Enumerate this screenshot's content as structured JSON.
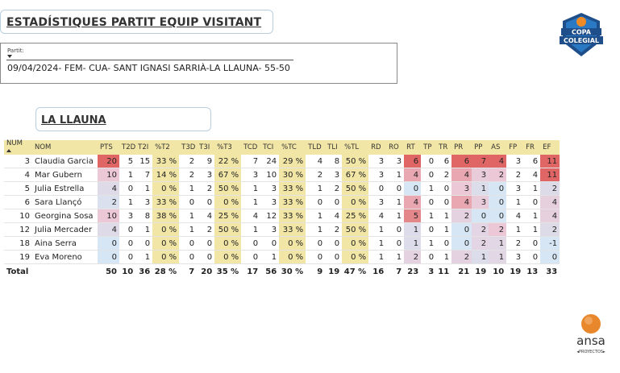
{
  "page_title": "ESTADÍSTIQUES PARTIT EQUIP VISITANT",
  "filter": {
    "label": "Partit:",
    "value": "09/04/2024- FEM- CUA- SANT IGNASI SARRIÀ-LA LLAUNA- 55-50"
  },
  "team": "LA LLAUNA",
  "logos": {
    "copa_line1": "COPA",
    "copa_line2": "COLEGIAL",
    "ansa_name": "ansa",
    "ansa_sub": "◂PROYECTOS▸"
  },
  "colors": {
    "header_bg": "#f1e6a6",
    "heat_high": "#e06666",
    "heat_low": "#dbe8f4",
    "accent": "#e8872b"
  },
  "table": {
    "columns": [
      "NUM",
      "NOM",
      "PTS",
      "T2D",
      "T2I",
      "%T2",
      "T3D",
      "T3I",
      "%T3",
      "TCD",
      "TCI",
      "%TC",
      "TLD",
      "TLI",
      "%TL",
      "RD",
      "RO",
      "RT",
      "TP",
      "TR",
      "PR",
      "PP",
      "AS",
      "FP",
      "FR",
      "EF"
    ],
    "rows": [
      [
        "3",
        "Claudia Garcia",
        "20",
        "5",
        "15",
        "33 %",
        "2",
        "9",
        "22 %",
        "7",
        "24",
        "29 %",
        "4",
        "8",
        "50 %",
        "3",
        "3",
        "6",
        "0",
        "6",
        "6",
        "7",
        "4",
        "3",
        "6",
        "11"
      ],
      [
        "4",
        "Mar Gubern",
        "10",
        "1",
        "7",
        "14 %",
        "2",
        "3",
        "67 %",
        "3",
        "10",
        "30 %",
        "2",
        "3",
        "67 %",
        "3",
        "1",
        "4",
        "0",
        "2",
        "4",
        "3",
        "2",
        "2",
        "4",
        "11"
      ],
      [
        "5",
        "Julia Estrella",
        "4",
        "0",
        "1",
        "0 %",
        "1",
        "2",
        "50 %",
        "1",
        "3",
        "33 %",
        "1",
        "2",
        "50 %",
        "0",
        "0",
        "0",
        "1",
        "0",
        "3",
        "1",
        "0",
        "3",
        "1",
        "2"
      ],
      [
        "6",
        "Sara Llançó",
        "2",
        "1",
        "3",
        "33 %",
        "0",
        "0",
        "0 %",
        "1",
        "3",
        "33 %",
        "0",
        "0",
        "0 %",
        "3",
        "1",
        "4",
        "0",
        "0",
        "4",
        "3",
        "0",
        "1",
        "0",
        "4"
      ],
      [
        "10",
        "Georgina Sosa",
        "10",
        "3",
        "8",
        "38 %",
        "1",
        "4",
        "25 %",
        "4",
        "12",
        "33 %",
        "1",
        "4",
        "25 %",
        "4",
        "1",
        "5",
        "1",
        "1",
        "2",
        "0",
        "0",
        "4",
        "1",
        "4"
      ],
      [
        "12",
        "Julia Mercader",
        "4",
        "0",
        "1",
        "0 %",
        "1",
        "2",
        "50 %",
        "1",
        "3",
        "33 %",
        "1",
        "2",
        "50 %",
        "1",
        "0",
        "1",
        "0",
        "1",
        "0",
        "2",
        "2",
        "1",
        "1",
        "2"
      ],
      [
        "18",
        "Aina Serra",
        "0",
        "0",
        "0",
        "0 %",
        "0",
        "0",
        "0 %",
        "0",
        "0",
        "0 %",
        "0",
        "0",
        "0 %",
        "1",
        "0",
        "1",
        "1",
        "0",
        "0",
        "2",
        "1",
        "2",
        "0",
        "-1"
      ],
      [
        "19",
        "Eva Moreno",
        "0",
        "0",
        "1",
        "0 %",
        "0",
        "0",
        "0 %",
        "0",
        "1",
        "0 %",
        "0",
        "0",
        "0 %",
        "1",
        "1",
        "2",
        "0",
        "1",
        "2",
        "1",
        "1",
        "3",
        "0",
        "0"
      ]
    ],
    "total": [
      "Total",
      "",
      "50",
      "10",
      "36",
      "28 %",
      "7",
      "20",
      "35 %",
      "17",
      "56",
      "30 %",
      "9",
      "19",
      "47 %",
      "16",
      "7",
      "23",
      "3",
      "11",
      "21",
      "19",
      "10",
      "19",
      "13",
      "33"
    ]
  }
}
